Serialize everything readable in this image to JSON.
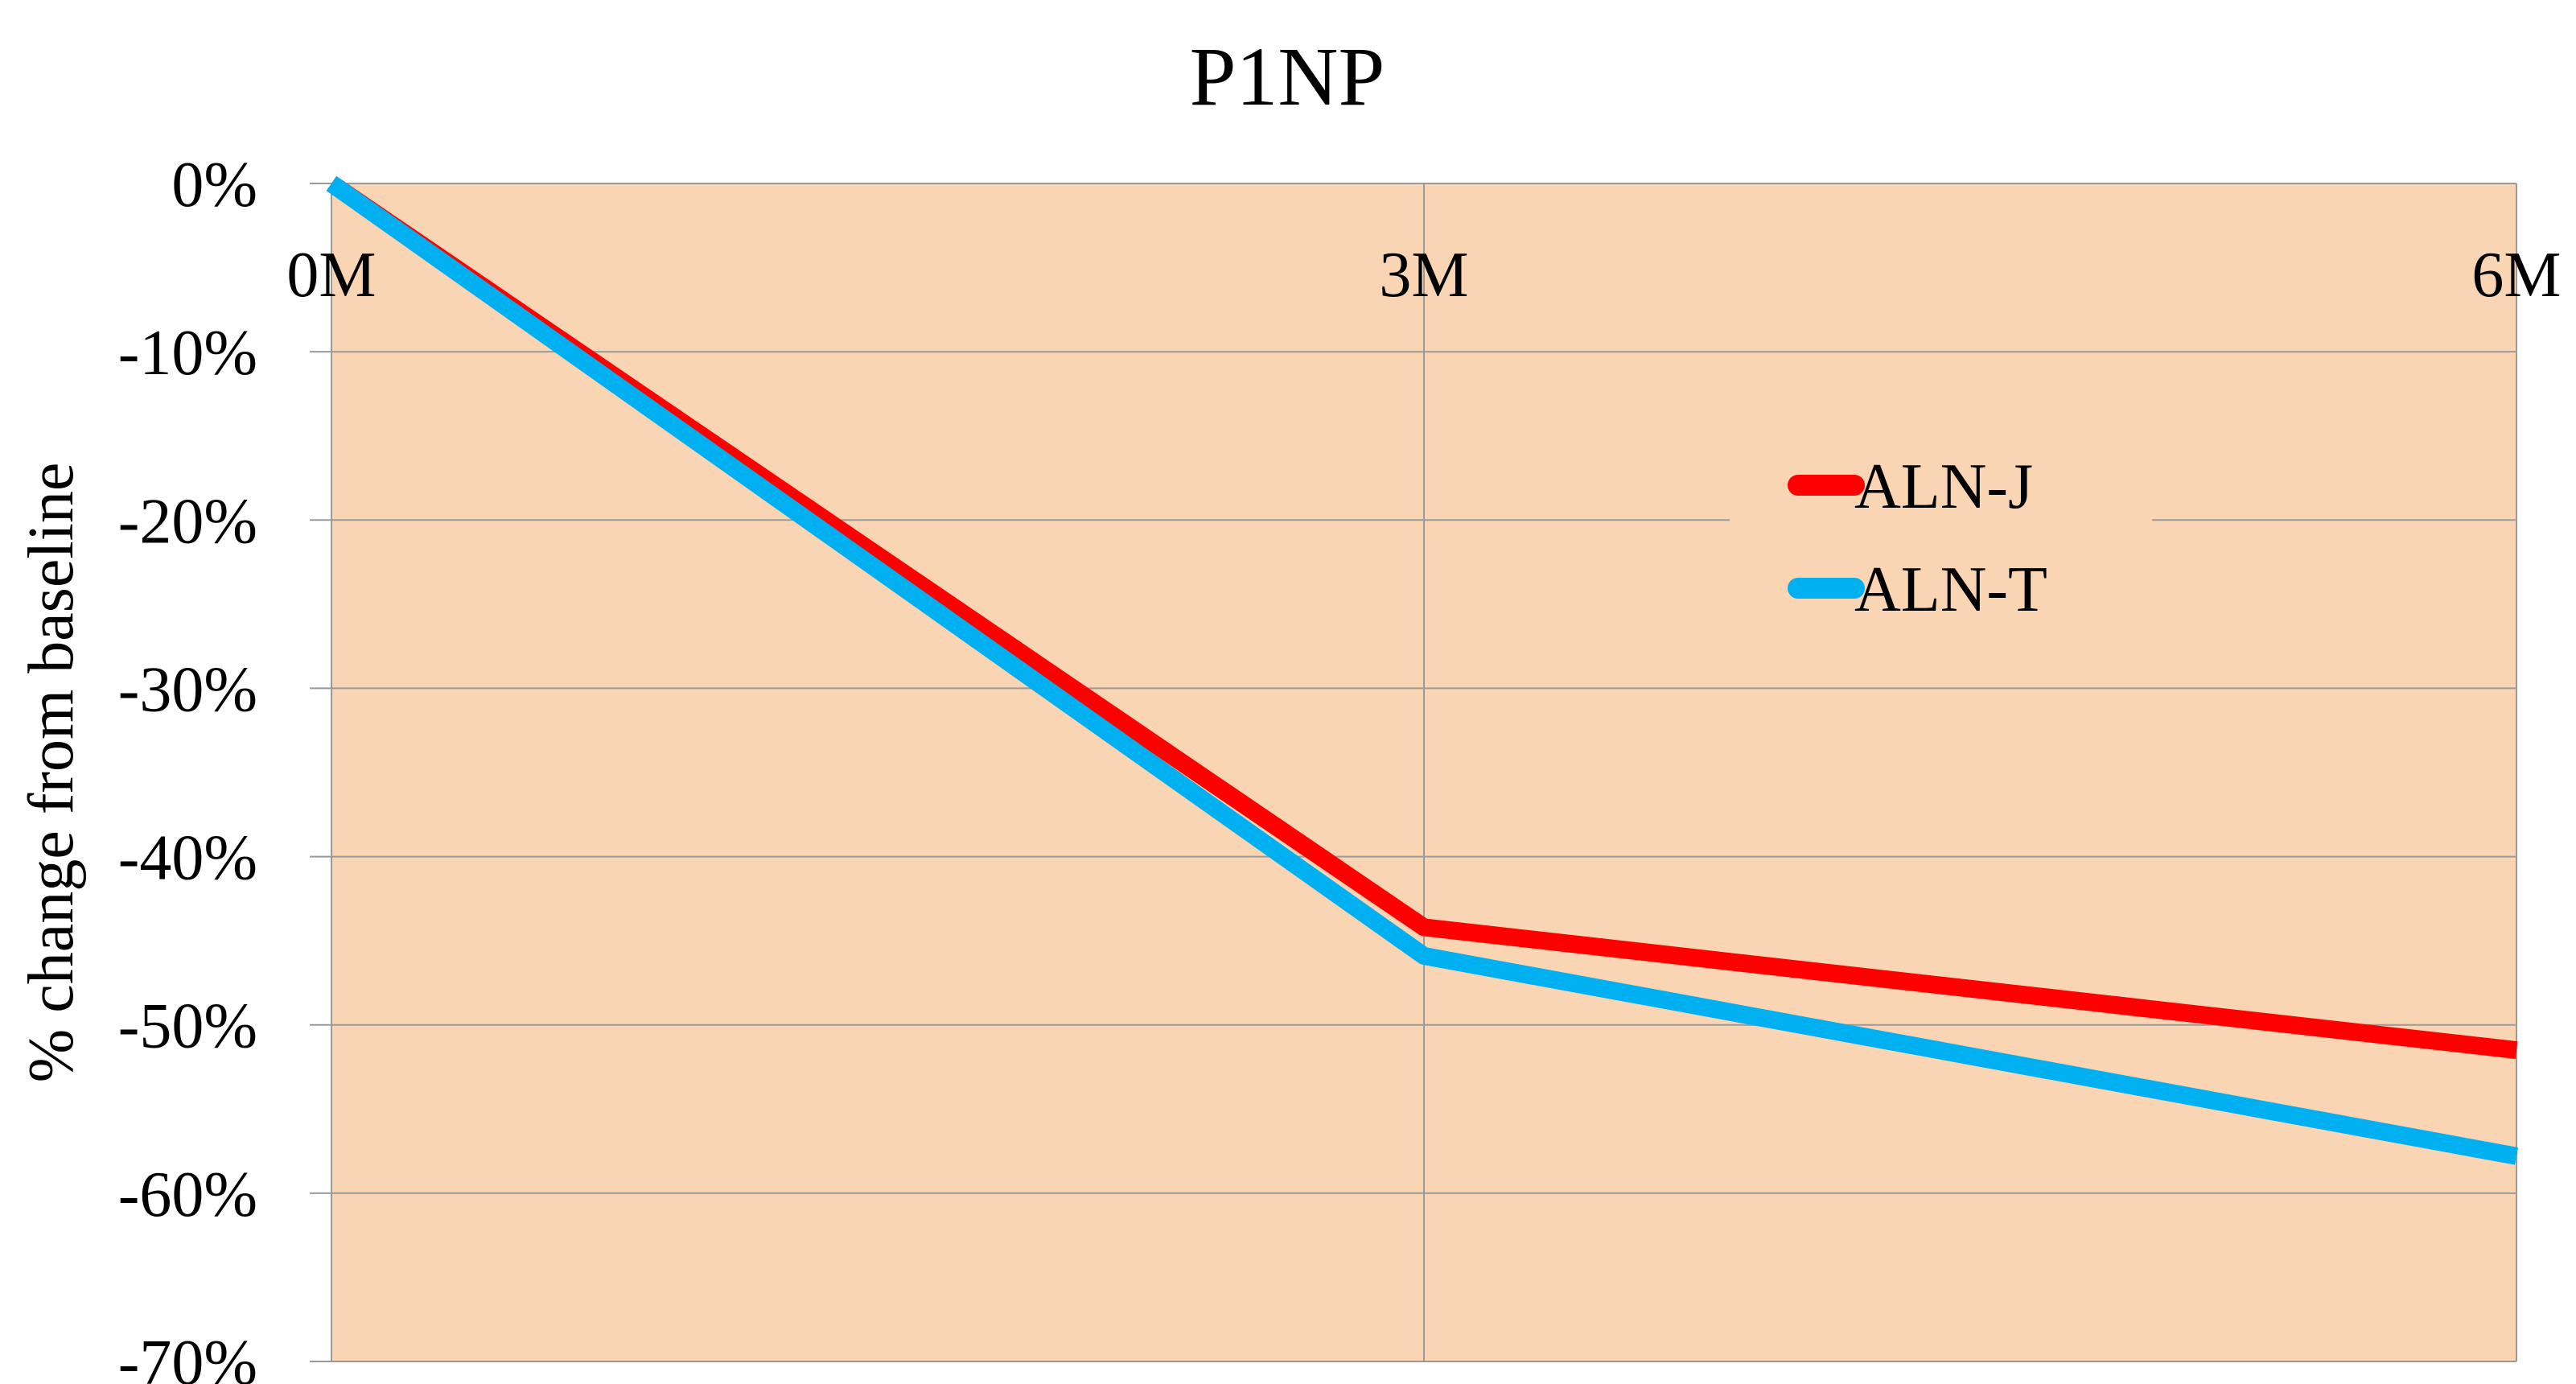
{
  "chart_data": {
    "type": "line",
    "title": "P1NP",
    "ylabel": "% change from baseline",
    "xlabel": "",
    "categories": [
      "0M",
      "3M",
      "6M"
    ],
    "yticks": [
      "0%",
      "-10%",
      "-20%",
      "-30%",
      "-40%",
      "-50%",
      "-60%",
      "-70%"
    ],
    "ylim": [
      -70,
      0
    ],
    "grid": true,
    "legend_position": "right",
    "plot_background": "#F9D5B4",
    "series": [
      {
        "name": "ALN-J",
        "color": "#FF0000",
        "values": [
          0,
          -44.2,
          -51.5
        ]
      },
      {
        "name": "ALN-T",
        "color": "#00B0F0",
        "values": [
          0,
          -45.9,
          -57.8
        ]
      }
    ]
  }
}
